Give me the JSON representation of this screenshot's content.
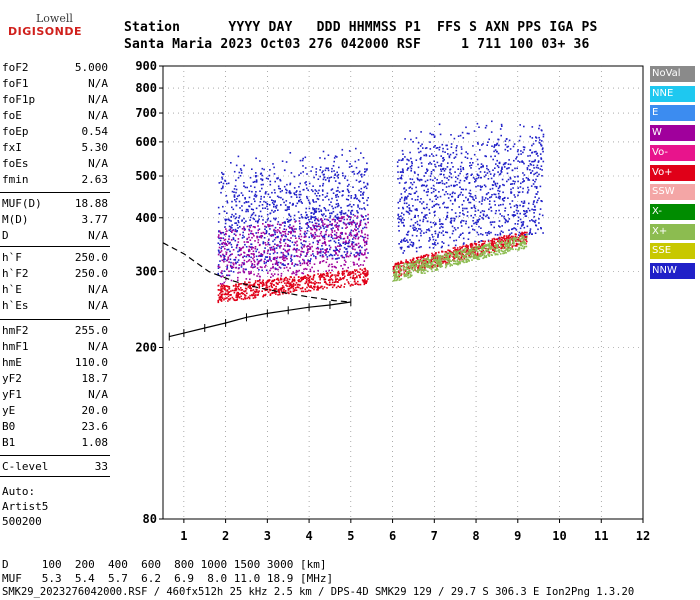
{
  "logo": {
    "line1": "Lowell",
    "line2": "DIGISONDE"
  },
  "header": {
    "row1": "Station      YYYY DAY   DDD HHMMSS P1  FFS S AXN PPS IGA PS",
    "row2": "Santa Maria 2023 Oct03 276 042000 RSF     1 711 100 03+ 36"
  },
  "params": [
    {
      "k": "foF2",
      "v": "5.000"
    },
    {
      "k": "foF1",
      "v": "N/A"
    },
    {
      "k": "foF1p",
      "v": "N/A"
    },
    {
      "k": "foE",
      "v": "N/A"
    },
    {
      "k": "foEp",
      "v": "0.54"
    },
    {
      "k": "fxI",
      "v": "5.30"
    },
    {
      "k": "foEs",
      "v": "N/A"
    },
    {
      "k": "fmin",
      "v": "2.63"
    },
    {
      "k": "MUF(D)",
      "v": "18.88"
    },
    {
      "k": "M(D)",
      "v": "3.77"
    },
    {
      "k": "D",
      "v": "N/A"
    },
    {
      "k": "h`F",
      "v": "250.0"
    },
    {
      "k": "h`F2",
      "v": "250.0"
    },
    {
      "k": "h`E",
      "v": "N/A"
    },
    {
      "k": "h`Es",
      "v": "N/A"
    },
    {
      "k": "hmF2",
      "v": "255.0"
    },
    {
      "k": "hmF1",
      "v": "N/A"
    },
    {
      "k": "hmE",
      "v": "110.0"
    },
    {
      "k": "yF2",
      "v": "18.7"
    },
    {
      "k": "yF1",
      "v": "N/A"
    },
    {
      "k": "yE",
      "v": "20.0"
    },
    {
      "k": "B0",
      "v": "23.6"
    },
    {
      "k": "B1",
      "v": "1.08"
    },
    {
      "k": "C-level",
      "v": "33"
    }
  ],
  "auto": {
    "l1": "Auto:",
    "l2": "Artist5",
    "l3": "500200"
  },
  "legend": [
    {
      "label": "NoVal",
      "color": "#8a8a8a"
    },
    {
      "label": "NNE",
      "color": "#1ec8f0"
    },
    {
      "label": "E",
      "color": "#3c8cf0"
    },
    {
      "label": "W",
      "color": "#a0009c"
    },
    {
      "label": "Vo-",
      "color": "#e8148c"
    },
    {
      "label": "Vo+",
      "color": "#e00018"
    },
    {
      "label": "SSW",
      "color": "#f4a6a6"
    },
    {
      "label": "X-",
      "color": "#008c00"
    },
    {
      "label": "X+",
      "color": "#8cbc50"
    },
    {
      "label": "SSE",
      "color": "#c8c800"
    },
    {
      "label": "NNW",
      "color": "#2020c8"
    }
  ],
  "chart_data": {
    "type": "scatter",
    "xlim": [
      0.5,
      12
    ],
    "xticks": [
      1,
      2,
      3,
      4,
      5,
      6,
      7,
      8,
      9,
      10,
      11,
      12
    ],
    "ylim": [
      80,
      900
    ],
    "yscale": "log",
    "yticks": [
      80,
      200,
      300,
      400,
      500,
      600,
      700,
      800,
      900
    ],
    "grid": true,
    "echo_traces": [
      {
        "name": "NNW",
        "color": "#2020c8",
        "region": "upper",
        "x_range": [
          1.8,
          5.4
        ],
        "h_range": [
          290,
          560
        ]
      },
      {
        "name": "NNW",
        "color": "#2020c8",
        "region": "upper",
        "x_range": [
          6.1,
          9.6
        ],
        "h_range": [
          330,
          660
        ]
      },
      {
        "name": "W",
        "color": "#a0009c",
        "region": "mid",
        "x_range": [
          1.8,
          5.4
        ],
        "h_range": [
          280,
          380
        ]
      },
      {
        "name": "Vo+",
        "color": "#e00018",
        "region": "trace",
        "x_range": [
          1.8,
          5.4
        ],
        "h_range": [
          255,
          300
        ]
      },
      {
        "name": "Vo+",
        "color": "#e00018",
        "region": "trace",
        "x_range": [
          6.0,
          9.2
        ],
        "h_range": [
          290,
          390
        ]
      },
      {
        "name": "X+",
        "color": "#8cbc50",
        "region": "trace",
        "x_range": [
          6.0,
          9.2
        ],
        "h_range": [
          285,
          380
        ]
      }
    ],
    "profile_line": {
      "x": [
        0.65,
        1.0,
        1.5,
        2.0,
        2.5,
        3.0,
        3.5,
        4.0,
        4.5,
        5.0
      ],
      "h": [
        212,
        216,
        222,
        228,
        235,
        240,
        244,
        248,
        251,
        255
      ]
    },
    "dashed_line": {
      "x": [
        0.5,
        1.0,
        1.6,
        2.2,
        2.8,
        3.4,
        4.0,
        4.6,
        5.0
      ],
      "h": [
        350,
        330,
        300,
        285,
        275,
        268,
        262,
        257,
        255
      ]
    }
  },
  "footer": {
    "line1": "D     100  200  400  600  800 1000 1500 3000 [km]",
    "line2": "MUF   5.3  5.4  5.7  6.2  6.9  8.0 11.0 18.9 [MHz]",
    "line3": "SMK29_2023276042000.RSF / 460fx512h 25 kHz 2.5 km / DPS-4D SMK29 129 / 29.7 S 306.3 E Ion2Png 1.3.20"
  }
}
